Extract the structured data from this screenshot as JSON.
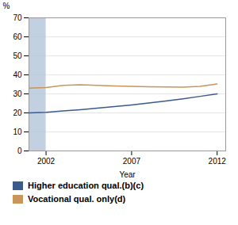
{
  "chart_data": {
    "type": "line",
    "title": "",
    "xlabel": "Year",
    "ylabel": "%",
    "x": [
      2001,
      2002,
      2003,
      2004,
      2005,
      2006,
      2007,
      2008,
      2009,
      2010,
      2011,
      2012
    ],
    "series": [
      {
        "name": "Higher education qual.(b)(c)",
        "color": "#3a5a8c",
        "values": [
          20.0,
          20.3,
          21.0,
          21.7,
          22.5,
          23.3,
          24.2,
          25.2,
          26.2,
          27.4,
          28.7,
          30.0
        ]
      },
      {
        "name": "Vocational qual. only(d)",
        "color": "#c8955a",
        "values": [
          33.0,
          33.3,
          34.5,
          34.8,
          34.5,
          34.2,
          34.0,
          33.8,
          33.6,
          33.5,
          34.0,
          35.2
        ]
      }
    ],
    "spans": [
      {
        "from": 2001.0,
        "to": 2002.0,
        "color": "#b8c8dc"
      }
    ],
    "xlim": [
      2001.0,
      2012.5
    ],
    "xticks": [
      2002,
      2007,
      2012
    ],
    "ylim": [
      0,
      70
    ],
    "yticks": [
      0,
      10,
      20,
      30,
      40,
      50,
      60,
      70
    ],
    "grid": true,
    "legend": "lower left"
  }
}
